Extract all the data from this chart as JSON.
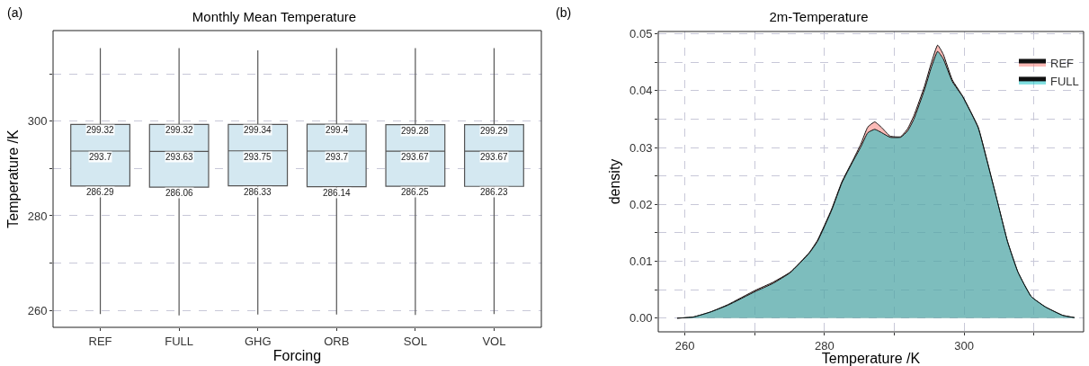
{
  "chart_data": [
    {
      "type": "box",
      "title": "Monthly Mean Temperature",
      "xlabel": "Forcing",
      "ylabel": "Temperature /K",
      "categories": [
        "REF",
        "FULL",
        "GHG",
        "ORB",
        "SOL",
        "VOL"
      ],
      "boxes": [
        {
          "low": 259.2,
          "q1": 286.29,
          "median": 293.7,
          "q3": 299.32,
          "high": 315.5
        },
        {
          "low": 258.9,
          "q1": 286.06,
          "median": 293.63,
          "q3": 299.32,
          "high": 315.5
        },
        {
          "low": 259.1,
          "q1": 286.33,
          "median": 293.75,
          "q3": 299.34,
          "high": 315
        },
        {
          "low": 259.1,
          "q1": 286.14,
          "median": 293.7,
          "q3": 299.4,
          "high": 315.5
        },
        {
          "low": 259,
          "q1": 286.25,
          "median": 293.67,
          "q3": 299.28,
          "high": 315.5
        },
        {
          "low": 259.2,
          "q1": 286.23,
          "median": 293.67,
          "q3": 299.29,
          "high": 315.5
        }
      ],
      "color": "#d4e8f1",
      "ylim": [
        256.4,
        319.2
      ],
      "yticks": [
        260,
        {
          "value": 270,
          "label": null
        },
        280,
        {
          "value": 290,
          "label": null
        },
        300,
        {
          "value": 310,
          "label": null
        }
      ],
      "grid": "y",
      "annotations": [
        "(a)",
        {
          "text": "299.32",
          "x": "REF",
          "y": 299.32
        },
        {
          "text": "293.7",
          "x": "REF",
          "y": 293.7
        },
        {
          "text": "286.29",
          "x": "REF",
          "y": 286.29
        },
        {
          "text": "299.32",
          "x": "FULL",
          "y": 299.32
        },
        {
          "text": "293.63",
          "x": "FULL",
          "y": 293.63
        },
        {
          "text": "286.06",
          "x": "FULL",
          "y": 286.06
        },
        {
          "text": "299.34",
          "x": "GHG",
          "y": 299.34
        },
        {
          "text": "293.75",
          "x": "GHG",
          "y": 293.75
        },
        {
          "text": "286.33",
          "x": "GHG",
          "y": 286.33
        },
        {
          "text": "299.4",
          "x": "ORB",
          "y": 299.4
        },
        {
          "text": "293.7",
          "x": "ORB",
          "y": 293.7
        },
        {
          "text": "286.14",
          "x": "ORB",
          "y": 286.14
        },
        {
          "text": "299.28",
          "x": "SOL",
          "y": 299.28
        },
        {
          "text": "293.67",
          "x": "SOL",
          "y": 293.67
        },
        {
          "text": "286.25",
          "x": "SOL",
          "y": 286.25
        },
        {
          "text": "299.29",
          "x": "VOL",
          "y": 299.29
        },
        {
          "text": "293.67",
          "x": "VOL",
          "y": 293.67
        },
        {
          "text": "286.23",
          "x": "VOL",
          "y": 286.23
        }
      ]
    },
    {
      "type": "area",
      "title": "2m-Temperature",
      "xlabel": "Temperature /K",
      "ylabel": "density",
      "x": [
        258.9,
        261.2,
        263.7,
        266.2,
        270.1,
        272.6,
        275.1,
        277.8,
        279,
        281,
        282.5,
        284,
        285.2,
        286.2,
        287.2,
        288.2,
        289.4,
        290.9,
        291.9,
        292.8,
        294.3,
        295.3,
        296.2,
        297,
        298.3,
        299.8,
        302,
        303.2,
        304.7,
        306.2,
        307.7,
        309.6,
        311.6,
        314.1,
        315.8
      ],
      "series": [
        {
          "name": "REF",
          "color": "#f8766d",
          "values": [
            0,
            0.0002,
            0.0011,
            0.0024,
            0.0049,
            0.0063,
            0.0081,
            0.0115,
            0.0137,
            0.0191,
            0.024,
            0.0276,
            0.0306,
            0.0336,
            0.0345,
            0.0335,
            0.032,
            0.0319,
            0.0333,
            0.0356,
            0.0407,
            0.0449,
            0.048,
            0.0464,
            0.0419,
            0.039,
            0.0336,
            0.0281,
            0.0208,
            0.0135,
            0.0081,
            0.0038,
            0.002,
            0.0005,
            0.0001
          ]
        },
        {
          "name": "FULL",
          "color": "#00bfc4",
          "values": [
            0,
            0.0002,
            0.0011,
            0.0023,
            0.0047,
            0.0061,
            0.008,
            0.0114,
            0.0135,
            0.0189,
            0.0238,
            0.0274,
            0.0301,
            0.0326,
            0.0332,
            0.0326,
            0.0318,
            0.0318,
            0.0329,
            0.035,
            0.0401,
            0.0441,
            0.0469,
            0.0456,
            0.0416,
            0.0389,
            0.0335,
            0.028,
            0.0208,
            0.0135,
            0.0081,
            0.0038,
            0.002,
            0.0005,
            0.0001
          ]
        }
      ],
      "xlim": [
        256.2,
        317.1
      ],
      "xticks": [
        260,
        {
          "value": 270,
          "label": null
        },
        280,
        {
          "value": 290,
          "label": null
        },
        300,
        {
          "value": 310,
          "label": null
        }
      ],
      "ylim": [
        -0.0024,
        0.0504
      ],
      "yticks": [
        {
          "value": 0,
          "label": "0.00"
        },
        {
          "value": 0.005,
          "label": null
        },
        {
          "value": 0.01,
          "label": "0.01"
        },
        {
          "value": 0.015,
          "label": null
        },
        {
          "value": 0.02,
          "label": "0.02"
        },
        {
          "value": 0.025,
          "label": null
        },
        {
          "value": 0.03,
          "label": "0.03"
        },
        {
          "value": 0.035,
          "label": null
        },
        {
          "value": 0.04,
          "label": "0.04"
        },
        {
          "value": 0.045,
          "label": null
        },
        {
          "value": 0.05,
          "label": "0.05"
        }
      ],
      "grid": true,
      "legend": "top right",
      "annotations": [
        "(b)"
      ]
    }
  ]
}
